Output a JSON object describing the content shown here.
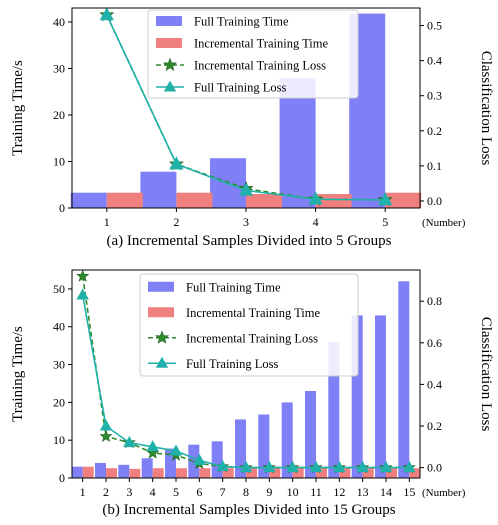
{
  "chart_data": [
    {
      "type": "bar",
      "caption": "(a) Incremental Samples Divided into 5 Groups",
      "xunit": "(Number)",
      "ylabel": "Training Time/s",
      "y2label": "Classification Loss",
      "categories": [
        "1",
        "2",
        "3",
        "4",
        "5"
      ],
      "ylim": [
        0,
        43
      ],
      "y2lim": [
        -0.02,
        0.55
      ],
      "yticks": [
        0,
        10,
        20,
        30,
        40
      ],
      "y2ticks": [
        0.0,
        0.1,
        0.2,
        0.3,
        0.4,
        0.5
      ],
      "legend_position": "top-center",
      "series": [
        {
          "name": "Full Training Time",
          "kind": "bar",
          "axis": "left",
          "color": "#8080f6",
          "values": [
            3.3,
            7.8,
            10.7,
            28.0,
            41.8
          ]
        },
        {
          "name": "Incremental Training Time",
          "kind": "bar",
          "axis": "left",
          "color": "#f08080",
          "values": [
            3.3,
            3.3,
            3.0,
            3.0,
            3.3
          ]
        },
        {
          "name": "Incremental Training Loss",
          "kind": "line",
          "axis": "right",
          "color": "#2e8b2e",
          "marker": "star",
          "dashed": true,
          "values": [
            0.53,
            0.105,
            0.035,
            0.005,
            0.003
          ]
        },
        {
          "name": "Full Training Loss",
          "kind": "line",
          "axis": "right",
          "color": "#20b2aa",
          "marker": "triangle",
          "dashed": false,
          "values": [
            0.53,
            0.105,
            0.03,
            0.005,
            0.003
          ]
        }
      ]
    },
    {
      "type": "bar",
      "caption": "(b) Incremental Samples Divided into 15 Groups",
      "xunit": "(Number)",
      "ylabel": "Training Time/s",
      "y2label": "Classification Loss",
      "categories": [
        "1",
        "2",
        "3",
        "4",
        "5",
        "6",
        "7",
        "8",
        "9",
        "10",
        "11",
        "12",
        "13",
        "14",
        "15"
      ],
      "ylim": [
        0,
        55
      ],
      "y2lim": [
        -0.05,
        0.95
      ],
      "yticks": [
        0,
        10,
        20,
        30,
        40,
        50
      ],
      "y2ticks": [
        0.0,
        0.2,
        0.4,
        0.6,
        0.8
      ],
      "legend_position": "top-center",
      "series": [
        {
          "name": "Full Training Time",
          "kind": "bar",
          "axis": "left",
          "color": "#8080f6",
          "values": [
            3.0,
            4.0,
            3.5,
            5.2,
            7.8,
            8.8,
            9.7,
            15.5,
            16.8,
            20.0,
            23.0,
            36.0,
            43.0,
            43.0,
            52.0
          ]
        },
        {
          "name": "Incremental Training Time",
          "kind": "bar",
          "axis": "left",
          "color": "#f08080",
          "values": [
            3.0,
            2.6,
            2.4,
            2.6,
            2.6,
            2.6,
            2.6,
            2.6,
            2.6,
            2.6,
            2.6,
            2.6,
            2.6,
            2.6,
            2.6
          ]
        },
        {
          "name": "Incremental Training Loss",
          "kind": "line",
          "axis": "right",
          "color": "#2e8b2e",
          "marker": "star",
          "dashed": true,
          "values": [
            0.92,
            0.15,
            0.12,
            0.07,
            0.06,
            0.02,
            0.005,
            0.0,
            0.0,
            0.0,
            0.0,
            0.0,
            0.0,
            0.0,
            0.0
          ]
        },
        {
          "name": "Full Training Loss",
          "kind": "line",
          "axis": "right",
          "color": "#20b2aa",
          "marker": "triangle",
          "dashed": false,
          "values": [
            0.83,
            0.2,
            0.12,
            0.1,
            0.08,
            0.035,
            0.005,
            0.0,
            0.0,
            0.0,
            0.0,
            0.0,
            0.0,
            0.0,
            0.0
          ]
        }
      ]
    }
  ]
}
